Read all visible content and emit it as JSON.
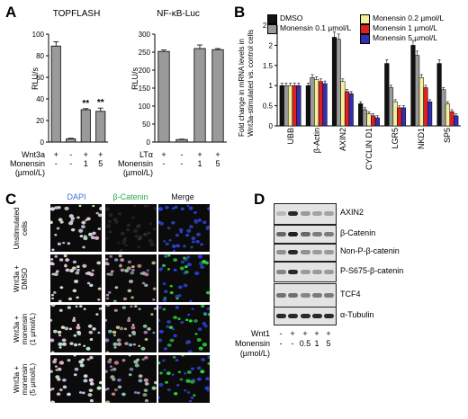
{
  "panel_labels": {
    "a": "A",
    "b": "B",
    "c": "C",
    "d": "D"
  },
  "panel_a": {
    "topflash": {
      "title": "TOPFLASH",
      "ylabel": "RLU/s",
      "yticks": [
        "0",
        "20",
        "40",
        "60",
        "80",
        "100"
      ],
      "ylim": [
        0,
        100
      ],
      "values": [
        89,
        3,
        30,
        28.5
      ],
      "errors": [
        4,
        0.5,
        1,
        3
      ],
      "sig": [
        "",
        "",
        "**",
        "**"
      ],
      "rows": [
        {
          "label": "Wnt3a",
          "cells": [
            "+",
            "-",
            "+",
            "+"
          ]
        },
        {
          "label": "Monensin",
          "cells": [
            "-",
            "-",
            "1",
            "5"
          ]
        },
        {
          "label": "(µmol/L)",
          "cells": [
            "",
            "",
            "",
            ""
          ]
        }
      ]
    },
    "nfkb": {
      "title": "NF-κB-Luc",
      "ylabel": "RLU/s",
      "yticks": [
        "0",
        "50",
        "100",
        "150",
        "200",
        "250",
        "300"
      ],
      "ylim": [
        0,
        300
      ],
      "values": [
        252,
        7,
        260,
        257
      ],
      "errors": [
        4,
        1,
        10,
        3
      ],
      "rows": [
        {
          "label": "LTα",
          "cells": [
            "+",
            "-",
            "+",
            "+"
          ]
        },
        {
          "label": "Monensin",
          "cells": [
            "-",
            "-",
            "1",
            "5"
          ]
        },
        {
          "label": "(µmol/L)",
          "cells": [
            "",
            "",
            "",
            ""
          ]
        }
      ]
    }
  },
  "panel_b": {
    "ylabel_line1": "Fold change in mRNA levels in",
    "ylabel_line2": "Wnt3a-stimulated vs. control cells",
    "yticks": [
      "0",
      "0.5",
      "1",
      "1.5",
      "2",
      "2.5"
    ],
    "ylim": [
      0,
      2.5
    ],
    "categories": [
      "UBB",
      "β-Actin",
      "AXIN2",
      "CYCLIN D1",
      "LGR5",
      "NKD1",
      "SP5"
    ],
    "series": [
      {
        "name": "DMSO",
        "color": "#111111",
        "values": [
          1.0,
          1.0,
          2.2,
          0.55,
          1.55,
          2.0,
          1.55
        ]
      },
      {
        "name": "Monensin 0.1 µmol/L",
        "color": "#9a9a9a",
        "values": [
          1.0,
          1.2,
          2.15,
          0.4,
          0.95,
          1.75,
          0.9
        ]
      },
      {
        "name": "Monensin 0.2 µmol/L",
        "color": "#f3ef9a",
        "values": [
          1.0,
          1.15,
          1.1,
          0.3,
          0.6,
          1.2,
          0.55
        ]
      },
      {
        "name": "Monensin 1 µmol/L",
        "color": "#e02020",
        "values": [
          1.0,
          1.1,
          0.85,
          0.25,
          0.45,
          0.95,
          0.35
        ]
      },
      {
        "name": "Monensin 5 µmol/L",
        "color": "#3030b0",
        "values": [
          1.0,
          1.05,
          0.8,
          0.2,
          0.45,
          0.6,
          0.25
        ]
      }
    ]
  },
  "panel_c": {
    "columns": [
      "DAPI",
      "β-Catenin",
      "Merge"
    ],
    "column_colors": [
      "#3c6fd8",
      "#27a84a",
      "#111111"
    ],
    "rows": [
      [
        "Unstimulated",
        "cells"
      ],
      [
        "Wnt3a +",
        "DMSO"
      ],
      [
        "Wnt3a +",
        "monensin",
        "(1 µmol/L)"
      ],
      [
        "Wnt3a +",
        "monensin",
        "(5 µmol/L)"
      ]
    ]
  },
  "panel_d": {
    "blots": [
      "AXIN2",
      "β-Catenin",
      "Non-P-β-catenin",
      "P-S675-β-catenin",
      "TCF4",
      "α-Tubulin"
    ],
    "rows": [
      {
        "label": "Wnt1",
        "cells": [
          "-",
          "+",
          "+",
          "+",
          "+"
        ]
      },
      {
        "label": "Monensin",
        "cells": [
          "-",
          "-",
          "0.5",
          "1",
          "5"
        ]
      },
      {
        "label": "(µmol/L)",
        "cells": [
          "",
          "",
          "",
          "",
          ""
        ]
      }
    ]
  }
}
